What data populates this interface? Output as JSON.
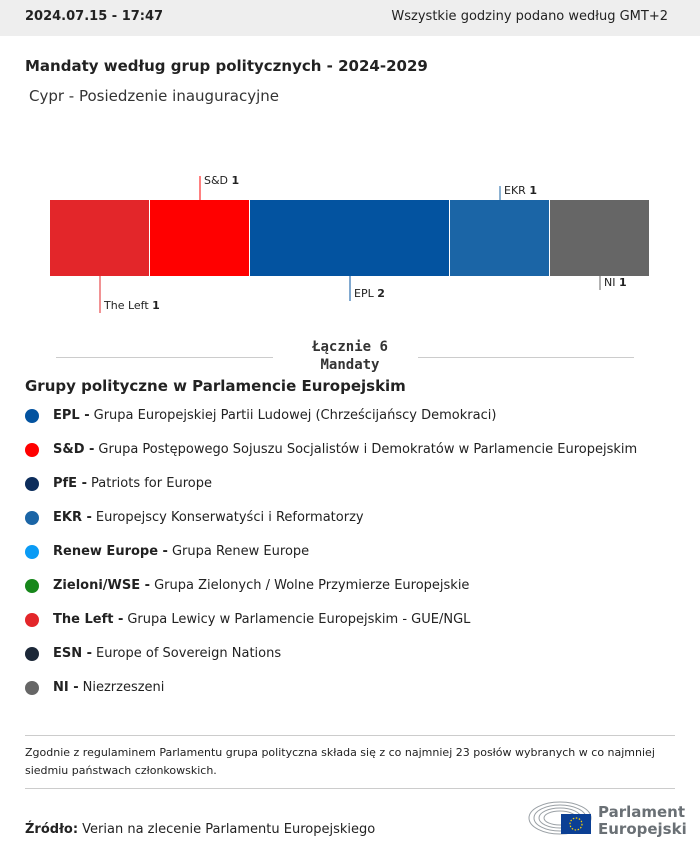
{
  "header": {
    "datetime": "2024.07.15 - 17:47",
    "timezone_note": "Wszystkie godziny podano według GMT+2"
  },
  "title": "Mandaty według grup politycznych - 2024-2029",
  "subtitle": "Cypr - Posiedzenie inauguracyjne",
  "chart_data": {
    "type": "bar",
    "orientation": "stacked-horizontal",
    "categories": [
      "The Left",
      "S&D",
      "EPL",
      "EKR",
      "NI"
    ],
    "values": [
      1,
      1,
      2,
      1,
      1
    ],
    "colors": [
      "#e3262a",
      "#ff0000",
      "#0353a0",
      "#1b65a6",
      "#666666"
    ],
    "total_label": "Łącznie 6",
    "total_unit": "Mandaty"
  },
  "legend": {
    "heading": "Grupy polityczne w Parlamencie Europejskim",
    "items": [
      {
        "abbr": "EPL -",
        "name": "Grupa Europejskiej Partii Ludowej (Chrześcijańscy Demokraci)",
        "color": "#0353a0"
      },
      {
        "abbr": "S&D -",
        "name": "Grupa Postępowego Sojuszu Socjalistów i Demokratów w Parlamencie Europejskim",
        "color": "#ff0000"
      },
      {
        "abbr": "PfE -",
        "name": "Patriots for Europe",
        "color": "#0c2d5c"
      },
      {
        "abbr": "EKR -",
        "name": "Europejscy Konserwatyści i Reformatorzy",
        "color": "#1b65a6"
      },
      {
        "abbr": "Renew Europe -",
        "name": "Grupa Renew Europe",
        "color": "#0a9bf5"
      },
      {
        "abbr": "Zieloni/WSE -",
        "name": "Grupa Zielonych / Wolne Przymierze Europejskie",
        "color": "#17871b"
      },
      {
        "abbr": "The Left -",
        "name": "Grupa Lewicy w Parlamencie Europejskim - GUE/NGL",
        "color": "#e3262a"
      },
      {
        "abbr": "ESN -",
        "name": "Europe of Sovereign Nations",
        "color": "#1c2838"
      },
      {
        "abbr": "NI -",
        "name": "Niezrzeszeni",
        "color": "#666666"
      }
    ]
  },
  "note": "Zgodnie z regulaminem Parlamentu grupa polityczna składa się z co najmniej 23 posłów wybranych w co najmniej siedmiu państwach członkowskich.",
  "source": {
    "label": "Źródło:",
    "text": "Verian na zlecenie Parlamentu Europejskiego"
  },
  "logo": {
    "line1": "Parlament",
    "line2": "Europejski"
  }
}
